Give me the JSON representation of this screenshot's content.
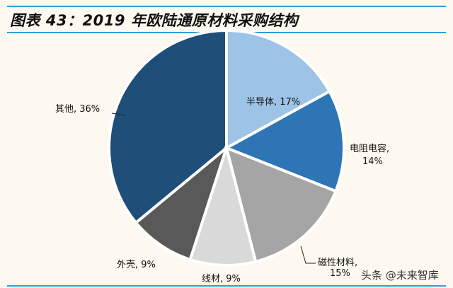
{
  "chart_data": {
    "type": "pie",
    "title": "图表 43：2019 年欧陆通原材料采购结构",
    "start": "12 o'clock, clockwise",
    "slices": [
      {
        "name": "半导体",
        "value": 17,
        "label": "半导体, 17%",
        "color": "#9dc3e6"
      },
      {
        "name": "电阻电容",
        "value": 14,
        "label1": "电阻电容,",
        "label2": "14%",
        "color": "#2e75b6"
      },
      {
        "name": "磁性材料",
        "value": 15,
        "label1": "磁性材料,",
        "label2": "15%",
        "color": "#a5a5a5"
      },
      {
        "name": "线材",
        "value": 9,
        "label": "线材, 9%",
        "color": "#d9d9d9"
      },
      {
        "name": "外壳",
        "value": 9,
        "label": "外壳, 9%",
        "color": "#595959"
      },
      {
        "name": "其他",
        "value": 36,
        "label": "其他, 36%",
        "color": "#1f4e79"
      }
    ]
  },
  "watermark": "头条 @未来智库"
}
